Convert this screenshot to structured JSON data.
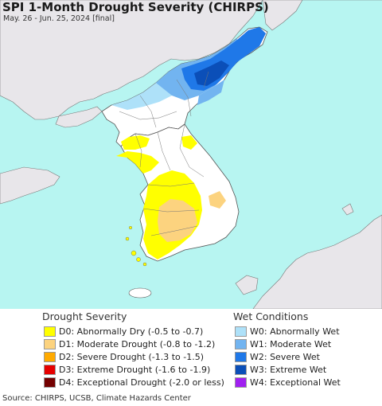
{
  "title": "SPI 1-Month Drought Severity (CHIRPS)",
  "subtitle": "May. 26 - Jun. 25, 2024 [final]",
  "map": {
    "region": "Korean Peninsula",
    "colors": {
      "sea": "#b7f5f1",
      "land": "#e8e6ea",
      "no_anomaly": "#ffffff",
      "border": "#555555"
    }
  },
  "legend": {
    "drought": {
      "heading": "Drought Severity",
      "items": [
        {
          "code": "D0",
          "label": "D0: Abnormally Dry (-0.5 to -0.7)",
          "color": "#ffff00"
        },
        {
          "code": "D1",
          "label": "D1: Moderate Drought (-0.8 to -1.2)",
          "color": "#fcd37f"
        },
        {
          "code": "D2",
          "label": "D2: Severe Drought (-1.3 to -1.5)",
          "color": "#ffaa00"
        },
        {
          "code": "D3",
          "label": "D3: Extreme Drought (-1.6 to -1.9)",
          "color": "#e60000"
        },
        {
          "code": "D4",
          "label": "D4: Exceptional Drought (-2.0 or less)",
          "color": "#730000"
        }
      ]
    },
    "wet": {
      "heading": "Wet Conditions",
      "items": [
        {
          "code": "W0",
          "label": "W0: Abnormally Wet",
          "color": "#aee1f9"
        },
        {
          "code": "W1",
          "label": "W1: Moderate Wet",
          "color": "#72b4f0"
        },
        {
          "code": "W2",
          "label": "W2: Severe Wet",
          "color": "#1f78e8"
        },
        {
          "code": "W3",
          "label": "W3: Extreme Wet",
          "color": "#0b4fb8"
        },
        {
          "code": "W4",
          "label": "W4: Exceptional Wet",
          "color": "#a020f0"
        }
      ]
    }
  },
  "source": "Source: CHIRPS, UCSB, Climate Hazards Center"
}
